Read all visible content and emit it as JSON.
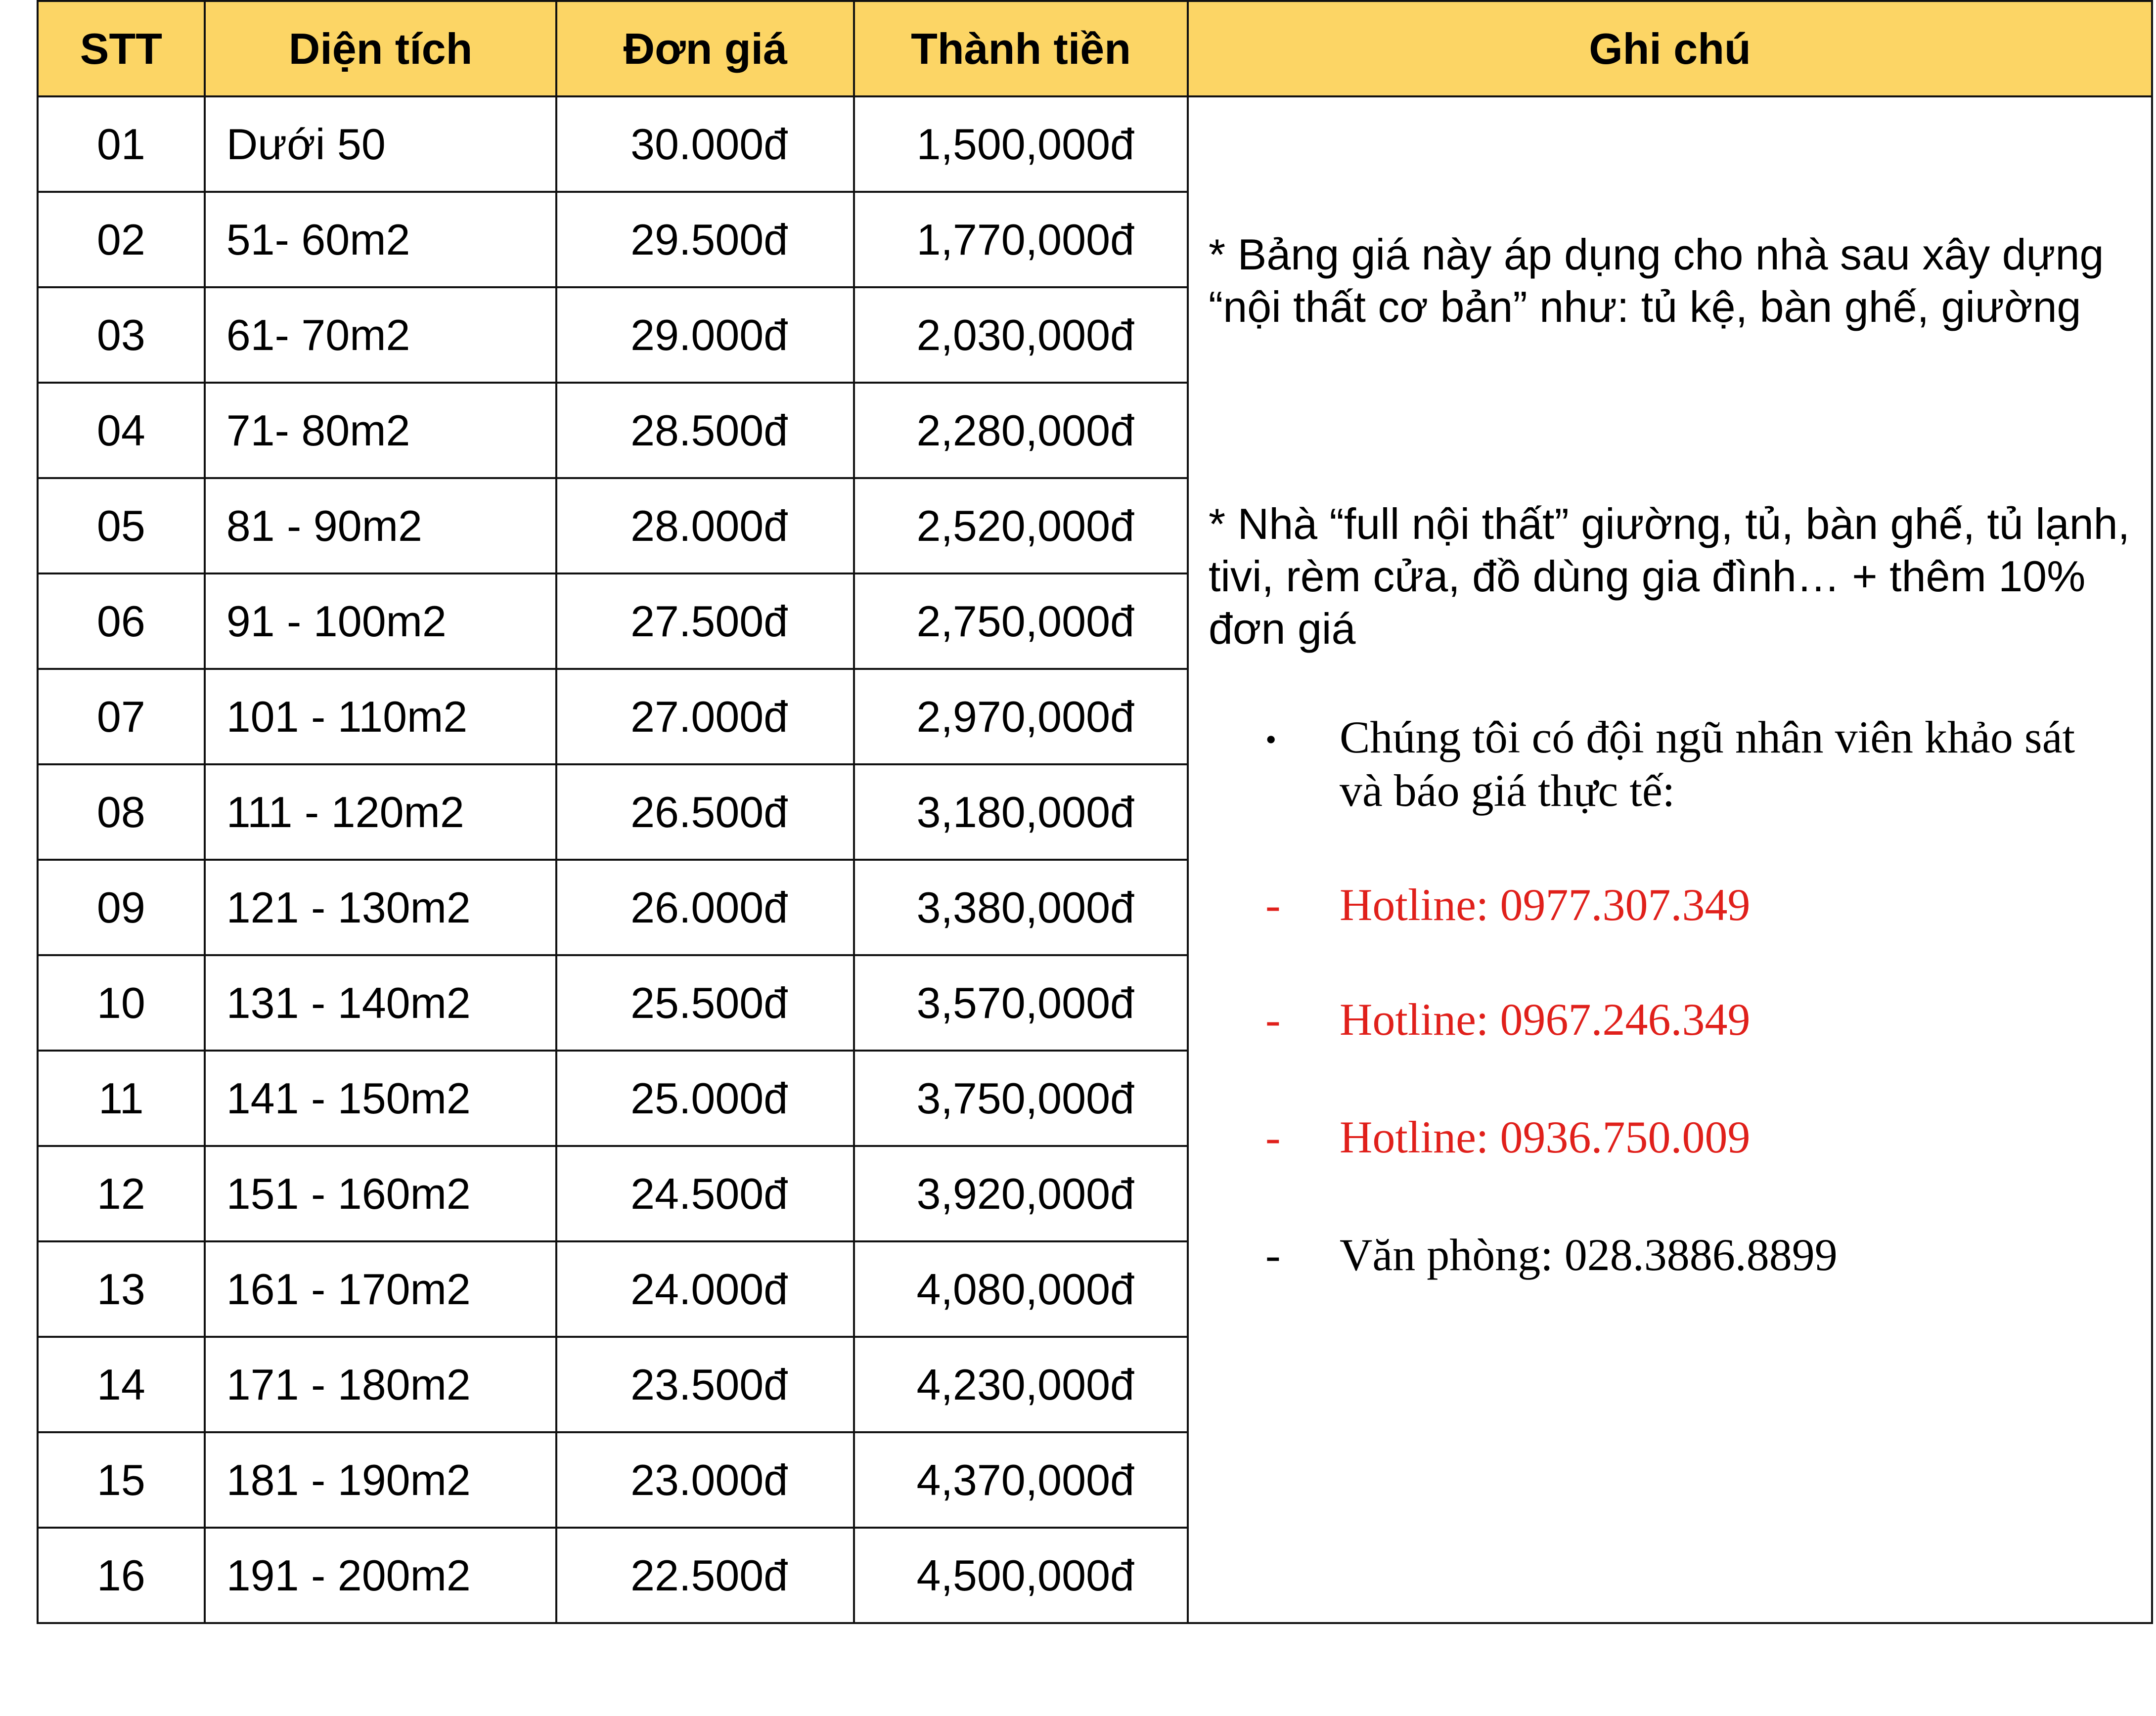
{
  "table": {
    "headers": [
      "STT",
      "Diện tích",
      "Đơn giá",
      "Thành tiền",
      "Ghi chú"
    ],
    "header_color": "#fcd565",
    "rows": [
      {
        "stt": "01",
        "area": "Dưới 50",
        "price": "30.000đ",
        "total": "1,500,000đ"
      },
      {
        "stt": "02",
        "area": "51- 60m2",
        "price": "29.500đ",
        "total": "1,770,000đ"
      },
      {
        "stt": "03",
        "area": "61- 70m2",
        "price": "29.000đ",
        "total": "2,030,000đ"
      },
      {
        "stt": "04",
        "area": "71- 80m2",
        "price": "28.500đ",
        "total": "2,280,000đ"
      },
      {
        "stt": "05",
        "area": "81 - 90m2",
        "price": "28.000đ",
        "total": "2,520,000đ"
      },
      {
        "stt": "06",
        "area": "91 - 100m2",
        "price": "27.500đ",
        "total": "2,750,000đ"
      },
      {
        "stt": "07",
        "area": "101 - 110m2",
        "price": "27.000đ",
        "total": "2,970,000đ"
      },
      {
        "stt": "08",
        "area": "111 - 120m2",
        "price": "26.500đ",
        "total": "3,180,000đ"
      },
      {
        "stt": "09",
        "area": "121 - 130m2",
        "price": "26.000đ",
        "total": "3,380,000đ"
      },
      {
        "stt": "10",
        "area": "131 - 140m2",
        "price": "25.500đ",
        "total": "3,570,000đ"
      },
      {
        "stt": "11",
        "area": "141 - 150m2",
        "price": "25.000đ",
        "total": "3,750,000đ"
      },
      {
        "stt": "12",
        "area": "151 - 160m2",
        "price": "24.500đ",
        "total": "3,920,000đ"
      },
      {
        "stt": "13",
        "area": "161 - 170m2",
        "price": "24.000đ",
        "total": "4,080,000đ"
      },
      {
        "stt": "14",
        "area": "171 - 180m2",
        "price": "23.500đ",
        "total": "4,230,000đ"
      },
      {
        "stt": "15",
        "area": "181 - 190m2",
        "price": "23.000đ",
        "total": "4,370,000đ"
      },
      {
        "stt": "16",
        "area": "191 - 200m2",
        "price": "22.500đ",
        "total": "4,500,000đ"
      }
    ]
  },
  "notes": {
    "note1": "* Bảng giá này áp dụng cho nhà sau xây dựng “nội thất cơ bản” như: tủ kệ, bàn ghế, giường",
    "note2": "* Nhà “full nội thất” giường, tủ, bàn ghế, tủ lạnh, tivi, rèm cửa, đồ dùng gia đình… + thêm 10% đơn giá",
    "bullet_mark": "•",
    "bullet_text": "Chúng tôi có đội ngũ nhân viên khảo sát và báo giá thực tế:",
    "dash_mark": "-",
    "hotlines": [
      "Hotline: 0977.307.349",
      "Hotline: 0967.246.349",
      "Hotline: 0936.750.009"
    ],
    "hotline_color": "#e0201b",
    "office": "Văn phòng: 028.3886.8899"
  }
}
